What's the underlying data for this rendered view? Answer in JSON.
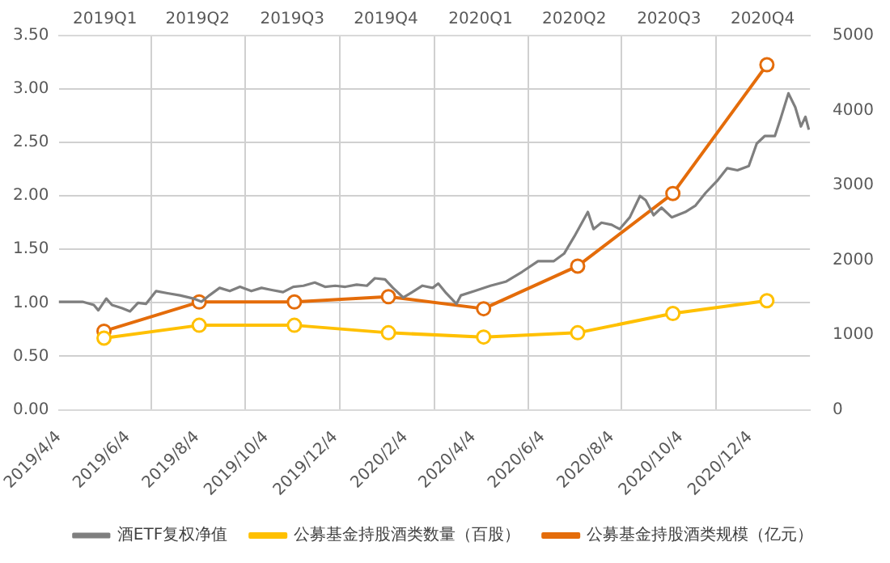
{
  "chart_data": {
    "type": "line",
    "xlim": [
      "2019-04-04",
      "2021-01-26"
    ],
    "xticks": [
      {
        "value": "2019-04-04",
        "label": "2019/4/4"
      },
      {
        "value": "2019-06-04",
        "label": "2019/6/4"
      },
      {
        "value": "2019-08-04",
        "label": "2019/8/4"
      },
      {
        "value": "2019-10-04",
        "label": "2019/10/4"
      },
      {
        "value": "2019-12-04",
        "label": "2019/12/4"
      },
      {
        "value": "2020-02-04",
        "label": "2020/2/4"
      },
      {
        "value": "2020-04-04",
        "label": "2020/4/4"
      },
      {
        "value": "2020-06-04",
        "label": "2020/6/4"
      },
      {
        "value": "2020-08-04",
        "label": "2020/8/4"
      },
      {
        "value": "2020-10-04",
        "label": "2020/10/4"
      },
      {
        "value": "2020-12-04",
        "label": "2020/12/4"
      }
    ],
    "x2lim": [
      "2019-01-01",
      "2020-12-31"
    ],
    "x2ticks": [
      {
        "value": "2019-02-15",
        "label": "2019Q1"
      },
      {
        "value": "2019-04-01",
        "label": null
      },
      {
        "value": "2019-05-16",
        "label": "2019Q2"
      },
      {
        "value": "2019-07-01",
        "label": null
      },
      {
        "value": "2019-08-16",
        "label": "2019Q3"
      },
      {
        "value": "2019-10-01",
        "label": null
      },
      {
        "value": "2019-11-15",
        "label": "2019Q4"
      },
      {
        "value": "2020-01-01",
        "label": null
      },
      {
        "value": "2020-02-15",
        "label": "2020Q1"
      },
      {
        "value": "2020-04-01",
        "label": null
      },
      {
        "value": "2020-05-16",
        "label": "2020Q2"
      },
      {
        "value": "2020-07-01",
        "label": null
      },
      {
        "value": "2020-08-16",
        "label": "2020Q3"
      },
      {
        "value": "2020-10-01",
        "label": null
      },
      {
        "value": "2020-11-15",
        "label": "2020Q4"
      }
    ],
    "ylim": [
      0,
      3.5
    ],
    "yticks": [
      {
        "value": 0,
        "label": "0.00"
      },
      {
        "value": 0.5,
        "label": "0.50"
      },
      {
        "value": 1,
        "label": "1.00"
      },
      {
        "value": 1.5,
        "label": "1.50"
      },
      {
        "value": 2,
        "label": "2.00"
      },
      {
        "value": 2.5,
        "label": "2.50"
      },
      {
        "value": 3,
        "label": "3.00"
      },
      {
        "value": 3.5,
        "label": "3.50"
      }
    ],
    "y2lim": [
      0,
      5000
    ],
    "y2ticks": [
      0,
      1000,
      2000,
      3000,
      4000,
      5000
    ],
    "grid": true,
    "legend": "bottom",
    "series": [
      {
        "name": "酒ETF复权净值",
        "color": "#7f7f7f",
        "marker": "none",
        "x": [
          "2019-04-04",
          "2019-04-25",
          "2019-05-05",
          "2019-05-09",
          "2019-05-16",
          "2019-05-21",
          "2019-05-30",
          "2019-06-06",
          "2019-06-13",
          "2019-06-20",
          "2019-06-29",
          "2019-07-09",
          "2019-07-20",
          "2019-08-01",
          "2019-08-08",
          "2019-08-15",
          "2019-08-24",
          "2019-09-02",
          "2019-09-11",
          "2019-09-21",
          "2019-09-30",
          "2019-10-09",
          "2019-10-19",
          "2019-10-28",
          "2019-11-06",
          "2019-11-16",
          "2019-11-25",
          "2019-12-04",
          "2019-12-13",
          "2019-12-23",
          "2020-01-01",
          "2020-01-08",
          "2020-01-17",
          "2020-01-24",
          "2020-02-02",
          "2020-02-10",
          "2020-02-19",
          "2020-02-28",
          "2020-03-04",
          "2020-03-11",
          "2020-03-20",
          "2020-03-24",
          "2020-04-05",
          "2020-04-19",
          "2020-05-03",
          "2020-05-17",
          "2020-05-31",
          "2020-06-14",
          "2020-06-23",
          "2020-07-02",
          "2020-07-14",
          "2020-07-19",
          "2020-07-26",
          "2020-08-04",
          "2020-08-11",
          "2020-08-20",
          "2020-08-29",
          "2020-09-03",
          "2020-09-10",
          "2020-09-17",
          "2020-09-26",
          "2020-10-08",
          "2020-10-17",
          "2020-10-26",
          "2020-11-05",
          "2020-11-14",
          "2020-11-23",
          "2020-12-03",
          "2020-12-10",
          "2020-12-17",
          "2020-12-26",
          "2020-12-31",
          "2021-01-07",
          "2021-01-13",
          "2021-01-18",
          "2021-01-22",
          "2021-01-25"
        ],
        "values": [
          1.01,
          1.01,
          0.98,
          0.93,
          1.04,
          0.98,
          0.95,
          0.92,
          1.0,
          0.99,
          1.11,
          1.09,
          1.07,
          1.04,
          1.01,
          1.07,
          1.14,
          1.11,
          1.15,
          1.11,
          1.14,
          1.12,
          1.1,
          1.15,
          1.16,
          1.19,
          1.15,
          1.16,
          1.15,
          1.17,
          1.16,
          1.23,
          1.22,
          1.14,
          1.05,
          1.1,
          1.16,
          1.14,
          1.18,
          1.09,
          0.99,
          1.07,
          1.11,
          1.16,
          1.2,
          1.29,
          1.39,
          1.39,
          1.46,
          1.62,
          1.85,
          1.69,
          1.75,
          1.73,
          1.69,
          1.8,
          2.0,
          1.96,
          1.82,
          1.89,
          1.8,
          1.85,
          1.91,
          2.03,
          2.14,
          2.26,
          2.24,
          2.28,
          2.49,
          2.56,
          2.56,
          2.72,
          2.96,
          2.83,
          2.65,
          2.74,
          2.62
        ]
      },
      {
        "name": "公募基金持股酒类数量（百股）",
        "color": "#ffc000",
        "marker": "circle",
        "x": [
          "2019-05-14",
          "2019-08-06",
          "2019-10-29",
          "2020-01-20",
          "2020-04-13",
          "2020-07-05",
          "2020-09-27",
          "2020-12-19"
        ],
        "values": [
          0.67,
          0.79,
          0.79,
          0.72,
          0.68,
          0.72,
          0.9,
          1.02
        ]
      },
      {
        "name": "公募基金持股酒类规模（亿元）",
        "color": "#e46c0a",
        "marker": "circle",
        "axis": "y2",
        "x": [
          "2019-05-14",
          "2019-08-06",
          "2019-10-29",
          "2020-01-20",
          "2020-04-13",
          "2020-07-05",
          "2020-09-27",
          "2020-12-19"
        ],
        "values": [
          1050,
          1440,
          1440,
          1510,
          1350,
          1920,
          2890,
          4610
        ]
      }
    ]
  }
}
